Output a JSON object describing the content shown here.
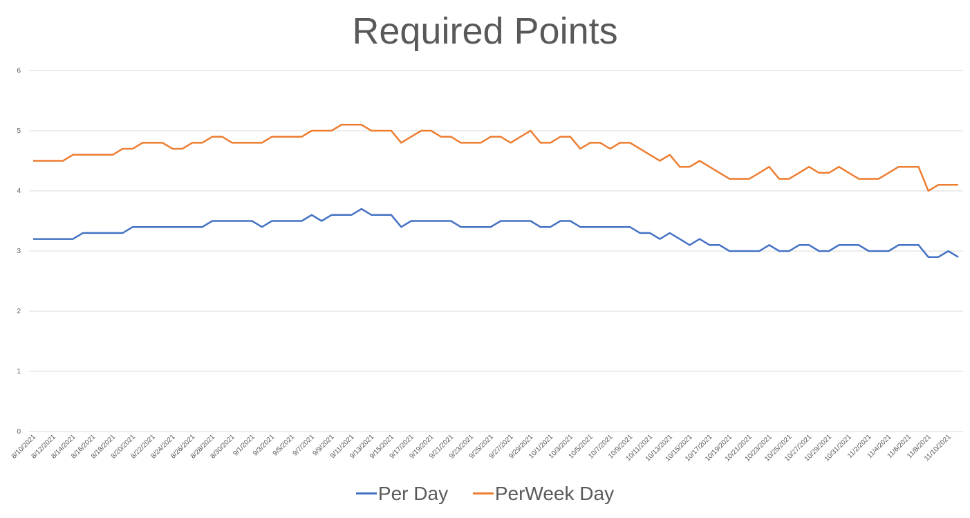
{
  "chart_data": {
    "type": "line",
    "title": "Required Points",
    "xlabel": "",
    "ylabel": "",
    "ylim": [
      0,
      6
    ],
    "yticks": [
      0,
      1,
      2,
      3,
      4,
      5,
      6
    ],
    "grid": true,
    "legend_position": "bottom",
    "x": [
      "8/10/2021",
      "8/11/2021",
      "8/12/2021",
      "8/13/2021",
      "8/14/2021",
      "8/15/2021",
      "8/16/2021",
      "8/17/2021",
      "8/18/2021",
      "8/19/2021",
      "8/20/2021",
      "8/21/2021",
      "8/22/2021",
      "8/23/2021",
      "8/24/2021",
      "8/25/2021",
      "8/26/2021",
      "8/27/2021",
      "8/28/2021",
      "8/29/2021",
      "8/30/2021",
      "8/31/2021",
      "9/1/2021",
      "9/2/2021",
      "9/3/2021",
      "9/4/2021",
      "9/5/2021",
      "9/6/2021",
      "9/7/2021",
      "9/8/2021",
      "9/9/2021",
      "9/10/2021",
      "9/11/2021",
      "9/12/2021",
      "9/13/2021",
      "9/14/2021",
      "9/15/2021",
      "9/16/2021",
      "9/17/2021",
      "9/18/2021",
      "9/19/2021",
      "9/20/2021",
      "9/21/2021",
      "9/22/2021",
      "9/23/2021",
      "9/24/2021",
      "9/25/2021",
      "9/26/2021",
      "9/27/2021",
      "9/28/2021",
      "9/29/2021",
      "9/30/2021",
      "10/1/2021",
      "10/2/2021",
      "10/3/2021",
      "10/4/2021",
      "10/5/2021",
      "10/6/2021",
      "10/7/2021",
      "10/8/2021",
      "10/9/2021",
      "10/10/2021",
      "10/11/2021",
      "10/12/2021",
      "10/13/2021",
      "10/14/2021",
      "10/15/2021",
      "10/16/2021",
      "10/17/2021",
      "10/18/2021",
      "10/19/2021",
      "10/20/2021",
      "10/21/2021",
      "10/22/2021",
      "10/23/2021",
      "10/24/2021",
      "10/25/2021",
      "10/26/2021",
      "10/27/2021",
      "10/28/2021",
      "10/29/2021",
      "10/30/2021",
      "10/31/2021",
      "11/1/2021",
      "11/2/2021",
      "11/3/2021",
      "11/4/2021",
      "11/5/2021",
      "11/6/2021",
      "11/7/2021",
      "11/8/2021",
      "11/9/2021",
      "11/10/2021",
      "11/11/2021"
    ],
    "series": [
      {
        "name": "Per Day",
        "color": "#4472C4",
        "values": [
          3.2,
          3.2,
          3.2,
          3.2,
          3.2,
          3.3,
          3.3,
          3.3,
          3.3,
          3.3,
          3.4,
          3.4,
          3.4,
          3.4,
          3.4,
          3.4,
          3.4,
          3.4,
          3.5,
          3.5,
          3.5,
          3.5,
          3.5,
          3.4,
          3.5,
          3.5,
          3.5,
          3.5,
          3.6,
          3.5,
          3.6,
          3.6,
          3.6,
          3.7,
          3.6,
          3.6,
          3.6,
          3.4,
          3.5,
          3.5,
          3.5,
          3.5,
          3.5,
          3.4,
          3.4,
          3.4,
          3.4,
          3.5,
          3.5,
          3.5,
          3.5,
          3.4,
          3.4,
          3.5,
          3.5,
          3.4,
          3.4,
          3.4,
          3.4,
          3.4,
          3.4,
          3.3,
          3.3,
          3.2,
          3.3,
          3.2,
          3.1,
          3.2,
          3.1,
          3.1,
          3.0,
          3.0,
          3.0,
          3.0,
          3.1,
          3.0,
          3.0,
          3.1,
          3.1,
          3.0,
          3.0,
          3.1,
          3.1,
          3.1,
          3.0,
          3.0,
          3.0,
          3.1,
          3.1,
          3.1,
          2.9,
          2.9,
          3.0,
          2.9
        ]
      },
      {
        "name": "PerWeek Day",
        "color": "#ED7D31",
        "values": [
          4.5,
          4.5,
          4.5,
          4.5,
          4.6,
          4.6,
          4.6,
          4.6,
          4.6,
          4.7,
          4.7,
          4.8,
          4.8,
          4.8,
          4.7,
          4.7,
          4.8,
          4.8,
          4.9,
          4.9,
          4.8,
          4.8,
          4.8,
          4.8,
          4.9,
          4.9,
          4.9,
          4.9,
          5.0,
          5.0,
          5.0,
          5.1,
          5.1,
          5.1,
          5.0,
          5.0,
          5.0,
          4.8,
          4.9,
          5.0,
          5.0,
          4.9,
          4.9,
          4.8,
          4.8,
          4.8,
          4.9,
          4.9,
          4.8,
          4.9,
          5.0,
          4.8,
          4.8,
          4.9,
          4.9,
          4.7,
          4.8,
          4.8,
          4.7,
          4.8,
          4.8,
          4.7,
          4.6,
          4.5,
          4.6,
          4.4,
          4.4,
          4.5,
          4.4,
          4.3,
          4.2,
          4.2,
          4.2,
          4.3,
          4.4,
          4.2,
          4.2,
          4.3,
          4.4,
          4.3,
          4.3,
          4.4,
          4.3,
          4.2,
          4.2,
          4.2,
          4.3,
          4.4,
          4.4,
          4.4,
          4.0,
          4.1,
          4.1,
          4.1
        ]
      }
    ]
  }
}
